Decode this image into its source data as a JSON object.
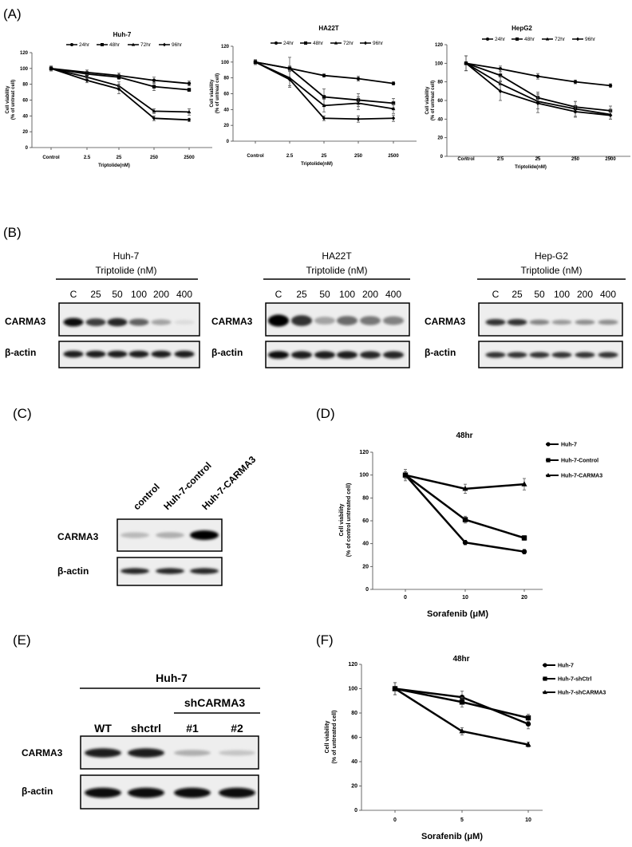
{
  "figure": {
    "panel_labels": [
      "(A)",
      "(B)",
      "(C)",
      "(D)",
      "(E)",
      "(F)"
    ],
    "marker_shapes": [
      "circle",
      "square",
      "triangle",
      "diamond"
    ]
  },
  "chart_data": [
    {
      "id": "A1",
      "type": "line",
      "title": "Huh-7",
      "categories": [
        "Control",
        "2.5",
        "25",
        "250",
        "2500"
      ],
      "xlabel": "Triptolide(nM)",
      "ylabel": "Cell viability (% of untreat cell)",
      "ylabel_lines": [
        "Cell viability",
        "(% of untreat cell)"
      ],
      "ylim": [
        0,
        120
      ],
      "yticks": [
        0,
        20,
        40,
        60,
        80,
        100,
        120
      ],
      "series": [
        {
          "name": "24hr",
          "values": [
            100,
            95,
            91,
            85,
            81
          ],
          "err": [
            3,
            3,
            3,
            4,
            3
          ]
        },
        {
          "name": "48hr",
          "values": [
            100,
            93,
            89,
            77,
            73
          ],
          "err": [
            3,
            3,
            3,
            5,
            2
          ]
        },
        {
          "name": "72hr",
          "values": [
            100,
            89,
            78,
            46,
            45
          ],
          "err": [
            3,
            3,
            5,
            3,
            4
          ]
        },
        {
          "name": "96hr",
          "values": [
            100,
            85,
            74,
            37,
            35
          ],
          "err": [
            3,
            3,
            6,
            3,
            2
          ]
        }
      ]
    },
    {
      "id": "A2",
      "type": "line",
      "title": "HA22T",
      "categories": [
        "Control",
        "2.5",
        "25",
        "250",
        "2500"
      ],
      "xlabel": "Triptolide(nM)",
      "ylabel": "Cell viability (% of untreat cell)",
      "ylabel_lines": [
        "Cell viability",
        "(% of untreat cell)"
      ],
      "ylim": [
        0,
        120
      ],
      "yticks": [
        0,
        20,
        40,
        60,
        80,
        100,
        120
      ],
      "series": [
        {
          "name": "24hr",
          "values": [
            100,
            92,
            83,
            79,
            73
          ],
          "err": [
            3,
            3,
            2,
            3,
            2
          ]
        },
        {
          "name": "48hr",
          "values": [
            100,
            92,
            56,
            52,
            48
          ],
          "err": [
            3,
            14,
            10,
            8,
            6
          ]
        },
        {
          "name": "72hr",
          "values": [
            100,
            80,
            45,
            48,
            41
          ],
          "err": [
            3,
            10,
            8,
            8,
            6
          ]
        },
        {
          "name": "96hr",
          "values": [
            100,
            78,
            29,
            28,
            29
          ],
          "err": [
            3,
            10,
            3,
            4,
            4
          ]
        }
      ]
    },
    {
      "id": "A3",
      "type": "line",
      "title": "HepG2",
      "categories": [
        "Control",
        "2.5",
        "25",
        "250",
        "2500"
      ],
      "xlabel": "Triptolide(nM)",
      "ylabel": "Cell viability (% of untreat cell)",
      "ylabel_lines": [
        "Cell viability",
        "(% of untreat cell)"
      ],
      "ylim": [
        0,
        120
      ],
      "yticks": [
        0,
        20,
        40,
        60,
        80,
        100,
        120
      ],
      "series": [
        {
          "name": "24hr",
          "values": [
            100,
            94,
            86,
            80,
            76
          ],
          "err": [
            8,
            3,
            3,
            2,
            2
          ]
        },
        {
          "name": "48hr",
          "values": [
            100,
            87,
            63,
            53,
            49
          ],
          "err": [
            8,
            6,
            6,
            6,
            5
          ]
        },
        {
          "name": "72hr",
          "values": [
            100,
            78,
            59,
            51,
            45
          ],
          "err": [
            8,
            8,
            8,
            8,
            5
          ]
        },
        {
          "name": "96hr",
          "values": [
            100,
            70,
            57,
            48,
            44
          ],
          "err": [
            8,
            10,
            10,
            6,
            4
          ]
        }
      ]
    },
    {
      "id": "D",
      "type": "line",
      "title": "48hr",
      "categories": [
        "0",
        "10",
        "20"
      ],
      "xlabel": "Sorafenib (μM)",
      "ylabel": "Cell viability (% of control untreated cell)",
      "ylabel_lines": [
        "Cell viability",
        "(% of control untreated cell)"
      ],
      "ylim": [
        0,
        120
      ],
      "yticks": [
        0,
        20,
        40,
        60,
        80,
        100,
        120
      ],
      "series": [
        {
          "name": "Huh-7",
          "values": [
            100,
            41,
            33
          ],
          "err": [
            3,
            2,
            2
          ]
        },
        {
          "name": "Huh-7-Control",
          "values": [
            100,
            61,
            45
          ],
          "err": [
            3,
            3,
            2
          ]
        },
        {
          "name": "Huh-7-CARMA3",
          "values": [
            100,
            88,
            92
          ],
          "err": [
            5,
            4,
            5
          ]
        }
      ]
    },
    {
      "id": "F",
      "type": "line",
      "title": "48hr",
      "categories": [
        "0",
        "5",
        "10"
      ],
      "xlabel": "Sorafenib (μM)",
      "ylabel": "Cell viability (% of untreated cell)",
      "ylabel_lines": [
        "Cell viability",
        "(% of untreated cell)"
      ],
      "ylim": [
        0,
        120
      ],
      "yticks": [
        0,
        20,
        40,
        60,
        80,
        100,
        120
      ],
      "series": [
        {
          "name": "Huh-7",
          "values": [
            100,
            93,
            71
          ],
          "err": [
            5,
            5,
            4
          ]
        },
        {
          "name": "Huh-7-shCtrl",
          "values": [
            100,
            89,
            76
          ],
          "err": [
            5,
            4,
            3
          ]
        },
        {
          "name": "Huh-7-shCARMA3",
          "values": [
            100,
            65,
            54
          ],
          "err": [
            5,
            3,
            2
          ]
        }
      ]
    }
  ],
  "blots": {
    "B1": {
      "cell": "Huh-7",
      "treatment": "Triptolide (nM)",
      "lanes": [
        "C",
        "25",
        "50",
        "100",
        "200",
        "400"
      ],
      "rows": [
        "CARMA3",
        "β-actin"
      ],
      "intensity": [
        [
          0.95,
          0.75,
          0.85,
          0.6,
          0.3,
          0.05
        ],
        [
          0.9,
          0.9,
          0.9,
          0.9,
          0.9,
          0.9
        ]
      ]
    },
    "B2": {
      "cell": "HA22T",
      "treatment": "Triptolide (nM)",
      "lanes": [
        "C",
        "25",
        "50",
        "100",
        "200",
        "400"
      ],
      "rows": [
        "CARMA3",
        "β-actin"
      ],
      "intensity": [
        [
          1.0,
          0.8,
          0.3,
          0.55,
          0.5,
          0.45
        ],
        [
          0.95,
          0.9,
          0.9,
          0.9,
          0.85,
          0.85
        ]
      ]
    },
    "B3": {
      "cell": "Hep-G2",
      "treatment": "Triptolide (nM)",
      "lanes": [
        "C",
        "25",
        "50",
        "100",
        "200",
        "400"
      ],
      "rows": [
        "CARMA3",
        "β-actin"
      ],
      "intensity": [
        [
          0.8,
          0.8,
          0.45,
          0.35,
          0.4,
          0.4
        ],
        [
          0.8,
          0.8,
          0.8,
          0.8,
          0.8,
          0.8
        ]
      ]
    },
    "C": {
      "lanes": [
        "control",
        "Huh-7-control",
        "Huh-7-CARMA3"
      ],
      "rows": [
        "CARMA3",
        "β-actin"
      ],
      "intensity": [
        [
          0.2,
          0.25,
          1.0
        ],
        [
          0.85,
          0.85,
          0.85
        ]
      ]
    },
    "E": {
      "cell": "Huh-7",
      "group": "shCARMA3",
      "lanes": [
        "WT",
        "shctrl",
        "#1",
        "#2"
      ],
      "rows": [
        "CARMA3",
        "β-actin"
      ],
      "intensity": [
        [
          0.9,
          0.9,
          0.25,
          0.15
        ],
        [
          0.95,
          0.95,
          0.95,
          0.95
        ]
      ]
    }
  }
}
